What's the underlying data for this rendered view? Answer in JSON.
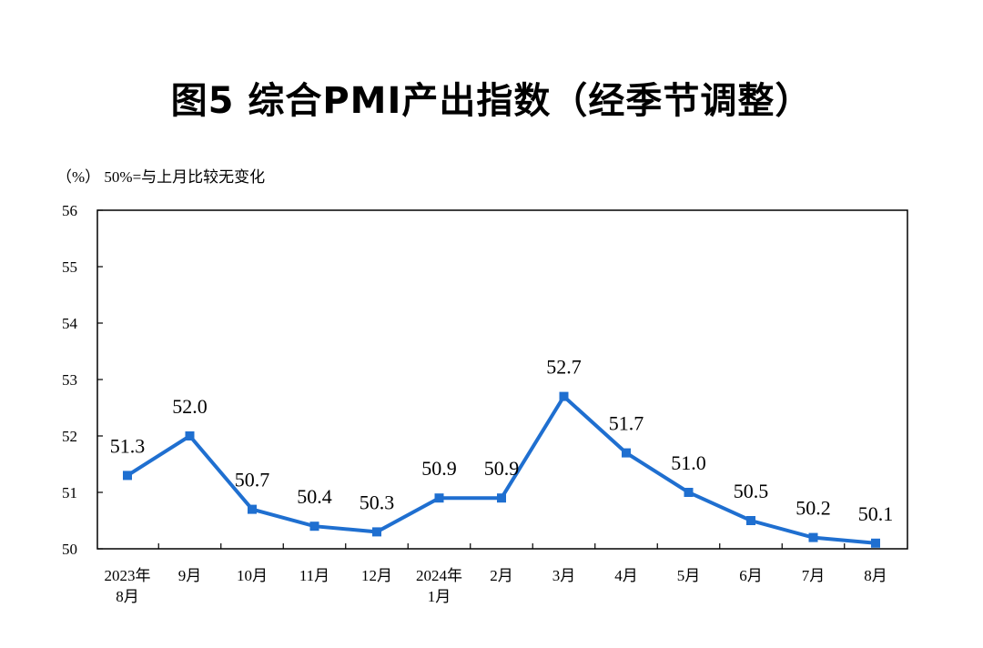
{
  "chart_data": {
    "type": "line",
    "title": "图5 综合PMI产出指数（经季节调整）",
    "unit_note": "（%）  50%=与上月比较无变化",
    "categories": [
      [
        "2023年",
        "8月"
      ],
      [
        "9月"
      ],
      [
        "10月"
      ],
      [
        "11月"
      ],
      [
        "12月"
      ],
      [
        "2024年",
        "1月"
      ],
      [
        "2月"
      ],
      [
        "3月"
      ],
      [
        "4月"
      ],
      [
        "5月"
      ],
      [
        "6月"
      ],
      [
        "7月"
      ],
      [
        "8月"
      ]
    ],
    "values": [
      51.3,
      52.0,
      50.7,
      50.4,
      50.3,
      50.9,
      50.9,
      52.7,
      51.7,
      51.0,
      50.5,
      50.2,
      50.1
    ],
    "labels": [
      "51.3",
      "52.0",
      "50.7",
      "50.4",
      "50.3",
      "50.9",
      "50.9",
      "52.7",
      "51.7",
      "51.0",
      "50.5",
      "50.2",
      "50.1"
    ],
    "ylim": [
      50,
      56
    ],
    "yticks": [
      50,
      51,
      52,
      53,
      54,
      55,
      56
    ],
    "grid": false,
    "legend": "none",
    "line_color": "#1f6fd0"
  }
}
